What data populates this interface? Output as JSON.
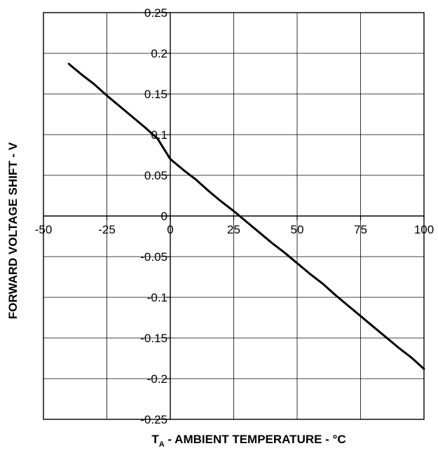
{
  "chart_data": {
    "type": "line",
    "title": "",
    "xlabel": {
      "main": "T",
      "sub": "A",
      "rest": " - AMBIENT TEMPERATURE - °C"
    },
    "ylabel": "FORWARD VOLTAGE SHIFT - V",
    "xlim": [
      -50,
      100
    ],
    "ylim": [
      -0.25,
      0.25
    ],
    "x_ticks": [
      -50,
      -25,
      0,
      25,
      50,
      75,
      100
    ],
    "x_tick_labels": [
      "-50",
      "-25",
      "0",
      "25",
      "50",
      "75",
      "100"
    ],
    "y_ticks": [
      0.25,
      0.2,
      0.15,
      0.1,
      0.05,
      0,
      -0.05,
      -0.1,
      -0.15,
      -0.2,
      -0.25
    ],
    "y_tick_labels": [
      "0.25",
      "0.2",
      "0.15",
      "0.1",
      "0.05",
      "0",
      "-0.05",
      "-0.1",
      "-0.15",
      "-0.2",
      "-0.25"
    ],
    "grid": true,
    "series": [
      {
        "color": "#000000",
        "x": [
          -40,
          -35,
          -30,
          -25,
          -20,
          -15,
          -10,
          -5,
          0,
          5,
          10,
          15,
          20,
          25,
          30,
          35,
          40,
          45,
          50,
          55,
          60,
          65,
          70,
          75,
          80,
          85,
          90,
          95,
          100
        ],
        "y": [
          0.187,
          0.174,
          0.162,
          0.148,
          0.135,
          0.122,
          0.109,
          0.095,
          0.07,
          0.057,
          0.045,
          0.031,
          0.018,
          0.006,
          -0.007,
          -0.02,
          -0.033,
          -0.045,
          -0.058,
          -0.071,
          -0.083,
          -0.097,
          -0.11,
          -0.123,
          -0.136,
          -0.149,
          -0.162,
          -0.174,
          -0.188
        ]
      }
    ]
  }
}
